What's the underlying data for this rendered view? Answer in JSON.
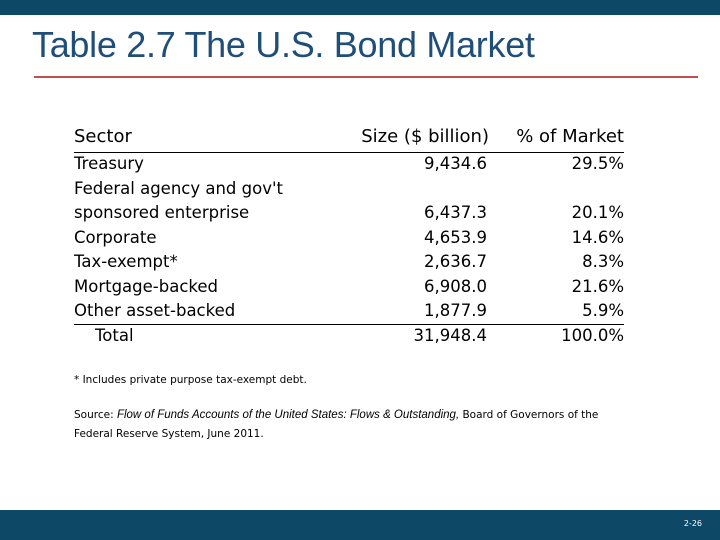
{
  "title": "Table 2.7 The U.S. Bond Market",
  "table": {
    "headers": {
      "sector": "Sector",
      "size": "Size ($ billion)",
      "pct": "% of Market"
    },
    "rows": [
      {
        "label": "Treasury",
        "size": "9,434.6",
        "pct": "29.5%"
      },
      {
        "label": "Federal agency and gov't",
        "size": "",
        "pct": ""
      },
      {
        "label": "sponsored enterprise",
        "size": "6,437.3",
        "pct": "20.1%"
      },
      {
        "label": "Corporate",
        "size": "4,653.9",
        "pct": "14.6%"
      },
      {
        "label": "Tax-exempt*",
        "size": "2,636.7",
        "pct": "8.3%"
      },
      {
        "label": "Mortgage-backed",
        "size": "6,908.0",
        "pct": "21.6%"
      },
      {
        "label": "Other asset-backed",
        "size": "1,877.9",
        "pct": "5.9%"
      }
    ],
    "total": {
      "label": "Total",
      "size": "31,948.4",
      "pct": "100.0%"
    }
  },
  "footnote": "* Includes private purpose tax-exempt debt.",
  "source": {
    "prefix": "Source: ",
    "publication": "Flow of Funds Accounts of the United States: Flows & Outstanding,",
    "suffix": " Board of Governors of the Federal Reserve System, June 2011."
  },
  "page_number": "2-26",
  "colors": {
    "bar": "#0d4866",
    "title": "#1f4e79",
    "title_rule": "#c0504d"
  }
}
